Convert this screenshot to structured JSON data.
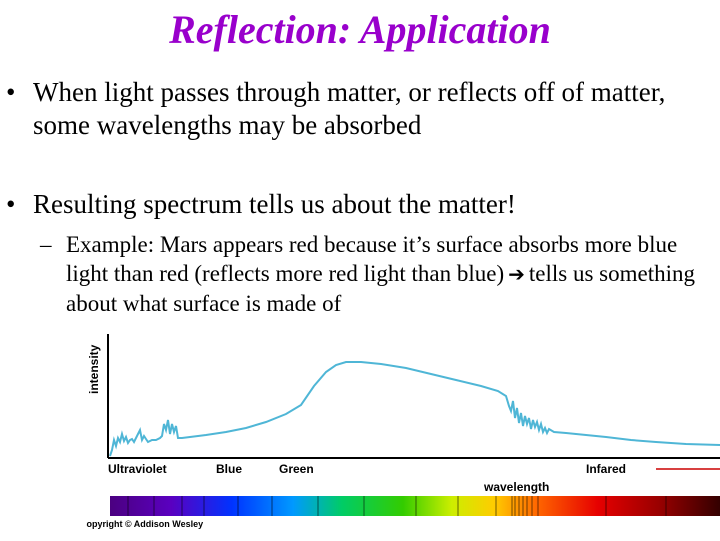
{
  "slide": {
    "title": "Reflection: Application",
    "bullets": [
      {
        "marker": "•",
        "text": "When light passes through matter, or reflects off of matter, some wavelengths may be absorbed"
      },
      {
        "marker": "•",
        "text": "Resulting spectrum tells us about the matter!"
      }
    ],
    "sub_bullet": {
      "marker": "–",
      "text_before_arrow": "Example: Mars appears red because it’s surface absorbs more blue light than red (reflects more red light than blue)",
      "arrow_icon": "right-arrow-icon",
      "text_after_arrow": "tells us something about what surface is made of"
    }
  },
  "figure": {
    "y_axis_label": "intensity",
    "x_axis_label": "wavelength",
    "band_labels": [
      "Ultraviolet",
      "Blue",
      "Green",
      "Infared"
    ],
    "copyright": "Copyright © Addison Wesley",
    "colors": {
      "title": "#9900cc",
      "curve": "#4fb6d6",
      "axis": "#000000",
      "infrared_line": "#cc0000"
    }
  }
}
